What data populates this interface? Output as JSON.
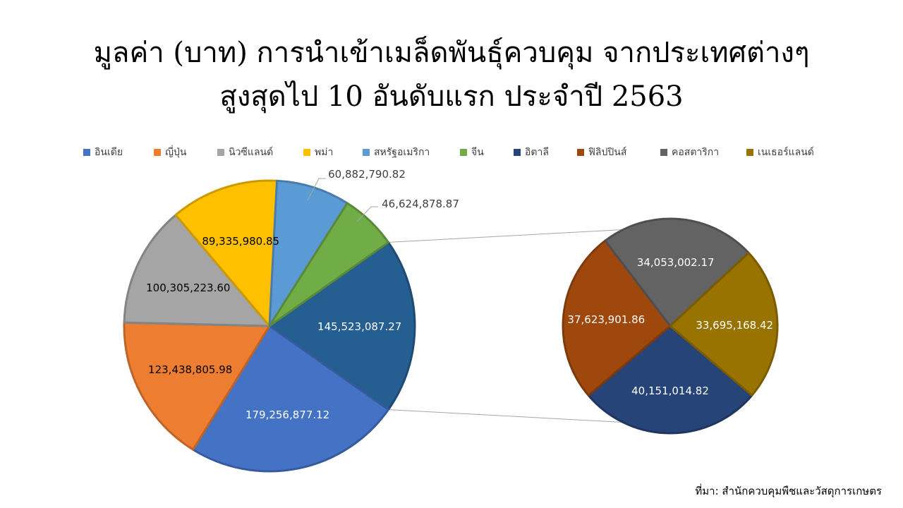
{
  "title": {
    "line1": "มูลค่า (บาท) การนำเข้าเมล็ดพันธุ์ควบคุม จากประเทศต่างๆ",
    "line2": "สูงสุดไป 10 อันดับแรก ประจำปี 2563"
  },
  "source": "ที่มา: สำนักควบคุมพืชและวัสดุการเกษตร",
  "chart_data": {
    "type": "pie",
    "subtype": "pie-of-pie",
    "legend_position": "top",
    "categories": [
      "อินเดีย",
      "ญี่ปุ่น",
      "นิวซีแลนด์",
      "พม่า",
      "สหรัฐอเมริกา",
      "จีน",
      "อิตาลี",
      "ฟิลิปปินส์",
      "คอสตาริกา",
      "เนเธอร์แลนด์"
    ],
    "values": [
      179256877.12,
      123438805.98,
      100305223.6,
      89335980.85,
      60882790.82,
      46624878.87,
      40151014.82,
      37623901.86,
      34053002.17,
      33695168.42
    ],
    "labels": [
      "179,256,877.12",
      "123,438,805.98",
      "100,305,223.60",
      "89,335,980.85",
      "60,882,790.82",
      "46,624,878.87",
      "40,151,014.82",
      "37,623,901.86",
      "34,053,002.17",
      "33,695,168.42"
    ],
    "colors": [
      "#4472C4",
      "#ED7D31",
      "#A5A5A5",
      "#FFC000",
      "#5B9BD5",
      "#70AD47",
      "#264478",
      "#9E480E",
      "#636363",
      "#997300"
    ],
    "main_pie_count": 6,
    "other_total": 145523087.27,
    "other_label": "145,523,087.27",
    "other_color": "#255E91"
  }
}
